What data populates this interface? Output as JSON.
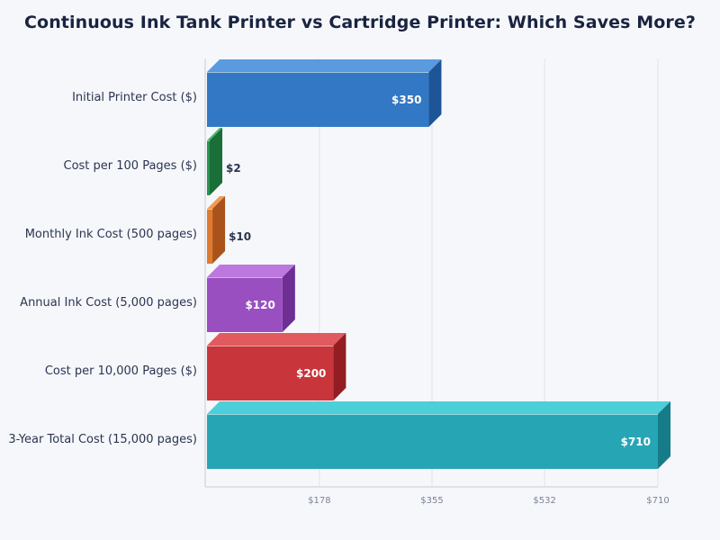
{
  "chart_data": {
    "type": "bar",
    "orientation": "horizontal",
    "title": "Continuous Ink Tank Printer vs Cartridge Printer: Which Saves More?",
    "xlabel": "",
    "ylabel": "",
    "xlim": [
      0,
      710
    ],
    "grid": true,
    "legend": "none",
    "categories": [
      "Initial Printer Cost ($)",
      "Cost per 100 Pages ($)",
      "Monthly Ink Cost (500 pages)",
      "Annual Ink Cost (5,000 pages)",
      "Cost per 10,000 Pages ($)",
      "3-Year Total Cost (15,000 pages)"
    ],
    "values": [
      350,
      2,
      10,
      120,
      200,
      710
    ],
    "value_labels": [
      "$350",
      "$2",
      "$10",
      "$120",
      "$200",
      "$710"
    ],
    "ticks": [
      178,
      355,
      532,
      710
    ],
    "tick_labels": [
      "$178",
      "$355",
      "$532",
      "$710"
    ],
    "colors": [
      {
        "front": "#3378c4",
        "top": "#5a9be0",
        "side": "#1e5597"
      },
      {
        "front": "#2a9450",
        "top": "#48b86c",
        "side": "#1a6e38"
      },
      {
        "front": "#e07a2e",
        "top": "#f29a55",
        "side": "#a9521a"
      },
      {
        "front": "#9a4fc0",
        "top": "#bc78dc",
        "side": "#6e2e94"
      },
      {
        "front": "#c8353a",
        "top": "#e05a5e",
        "side": "#921d22"
      },
      {
        "front": "#26a5b5",
        "top": "#4ccfd8",
        "side": "#167c89"
      }
    ]
  }
}
